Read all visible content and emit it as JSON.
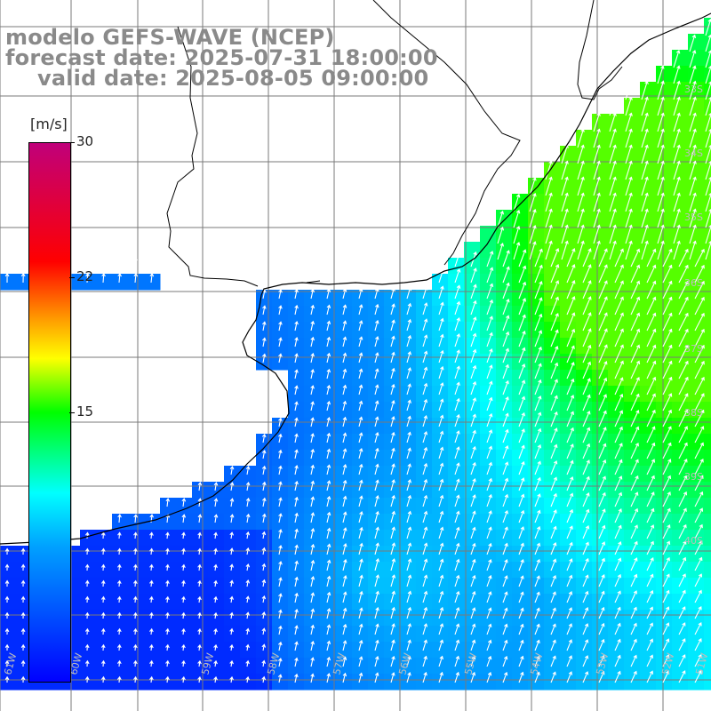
{
  "header": {
    "line1": "modelo GEFS-WAVE (NCEP)",
    "line2": "forecast date: 2025-07-31 18:00:00",
    "line3": "valid date: 2025-08-05 09:00:00"
  },
  "colorbar": {
    "unit": "[m/s]",
    "ticks": [
      "30",
      "22",
      "15"
    ],
    "colors": [
      "#0000ff",
      "#00a0ff",
      "#00ffff",
      "#00ff00",
      "#ffff00",
      "#ffa000",
      "#ff0000",
      "#c0007a"
    ]
  },
  "longitude_labels": [
    "61W",
    "60W",
    "59W",
    "58W",
    "57W",
    "56W",
    "55W",
    "54W",
    "53W",
    "52W",
    "51W"
  ],
  "latitude_labels": [
    "33S",
    "34S",
    "35S",
    "36S",
    "37S",
    "38S",
    "39S",
    "40S"
  ],
  "map": {
    "land_color": "#ffffff",
    "coastline_color": "#000000",
    "grid_color": "#7a7a7a",
    "arrow_color": "#ffffff"
  }
}
